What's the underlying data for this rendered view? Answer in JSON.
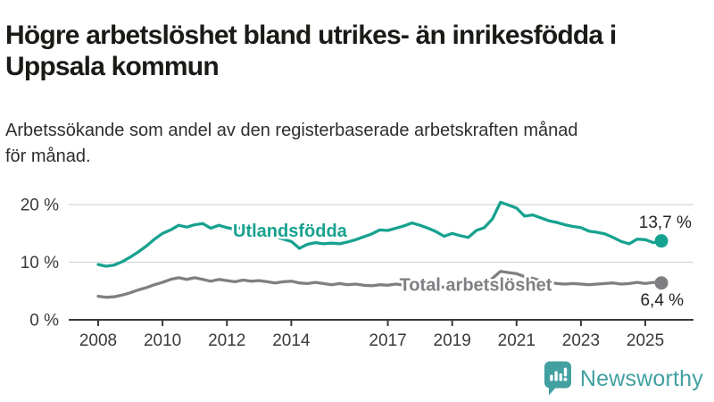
{
  "header": {
    "title_lines": [
      "Högre arbetslöshet bland utrikes- än inrikesfödda i",
      "Uppsala kommun"
    ],
    "subtitle_lines": [
      "Arbetssökande som andel av den registerbaserade arbetskraften månad",
      "för månad."
    ]
  },
  "chart_data": {
    "type": "line",
    "title": "Högre arbetslöshet bland utrikes- än inrikesfödda i Uppsala kommun",
    "subtitle": "Arbetssökande som andel av den registerbaserade arbetskraften månad för månad.",
    "grid": true,
    "legend_position": "inline",
    "y_unit": "%",
    "y_tick_suffix": " %",
    "y_ticks": [
      0,
      10,
      20
    ],
    "ylim": [
      0,
      21.5
    ],
    "x_ticks": [
      2008,
      2010,
      2012,
      2014,
      2017,
      2019,
      2021,
      2023,
      2025
    ],
    "xlim": [
      2008,
      2025.6
    ],
    "x_start": 2008,
    "x_step": 0.25,
    "colors": {
      "grid": "#d6d6d6",
      "axis": "#3a3a3a"
    },
    "series": [
      {
        "name": "Utlandsfödda",
        "color": "#17a28f",
        "end_value": 13.7,
        "end_label": {
          "text": "13,7 %",
          "year": 2025.62,
          "pct": 16.9
        },
        "inline_label": {
          "text": "Utlandsfödda",
          "year": 2013.96,
          "pct": 15.5
        },
        "values": [
          9.6,
          9.3,
          9.5,
          10.1,
          10.9,
          11.8,
          12.8,
          14.0,
          15.0,
          15.6,
          16.4,
          16.1,
          16.5,
          16.7,
          15.9,
          16.4,
          16.0,
          15.7,
          16.1,
          15.6,
          15.2,
          14.8,
          14.4,
          14.0,
          13.6,
          12.4,
          13.1,
          13.4,
          13.2,
          13.3,
          13.2,
          13.5,
          13.9,
          14.4,
          14.9,
          15.6,
          15.5,
          15.9,
          16.3,
          16.8,
          16.4,
          15.9,
          15.3,
          14.5,
          15.0,
          14.6,
          14.3,
          15.5,
          16.0,
          17.5,
          20.4,
          19.9,
          19.4,
          18.0,
          18.2,
          17.7,
          17.2,
          16.9,
          16.5,
          16.2,
          16.0,
          15.4,
          15.2,
          14.9,
          14.3,
          13.6,
          13.2,
          14.0,
          13.9,
          13.4,
          13.7
        ]
      },
      {
        "name": "Total arbetslöshet",
        "color": "#7f7f83",
        "end_value": 6.4,
        "end_label": {
          "text": "6,4 %",
          "year": 2025.52,
          "pct": 3.4
        },
        "inline_label": {
          "text": "Total arbetslöshet",
          "year": 2019.73,
          "pct": 6.15
        },
        "values": [
          4.1,
          3.9,
          4.0,
          4.3,
          4.7,
          5.2,
          5.6,
          6.1,
          6.5,
          7.0,
          7.3,
          7.0,
          7.3,
          7.0,
          6.7,
          7.0,
          6.8,
          6.6,
          6.9,
          6.7,
          6.8,
          6.6,
          6.4,
          6.6,
          6.7,
          6.4,
          6.3,
          6.5,
          6.3,
          6.1,
          6.3,
          6.1,
          6.2,
          6.0,
          5.9,
          6.1,
          6.0,
          6.2,
          6.0,
          5.9,
          5.8,
          5.6,
          5.5,
          5.7,
          5.6,
          5.5,
          5.7,
          5.9,
          6.0,
          7.2,
          8.4,
          8.2,
          8.0,
          7.5,
          7.2,
          6.8,
          6.5,
          6.3,
          6.2,
          6.3,
          6.2,
          6.1,
          6.2,
          6.3,
          6.4,
          6.2,
          6.3,
          6.5,
          6.3,
          6.5,
          6.4
        ]
      }
    ]
  },
  "footer": {
    "brand": "Newsworthy",
    "brand_color": "#43a0a1",
    "icon": "bar-chart-speech-bubble-icon"
  }
}
